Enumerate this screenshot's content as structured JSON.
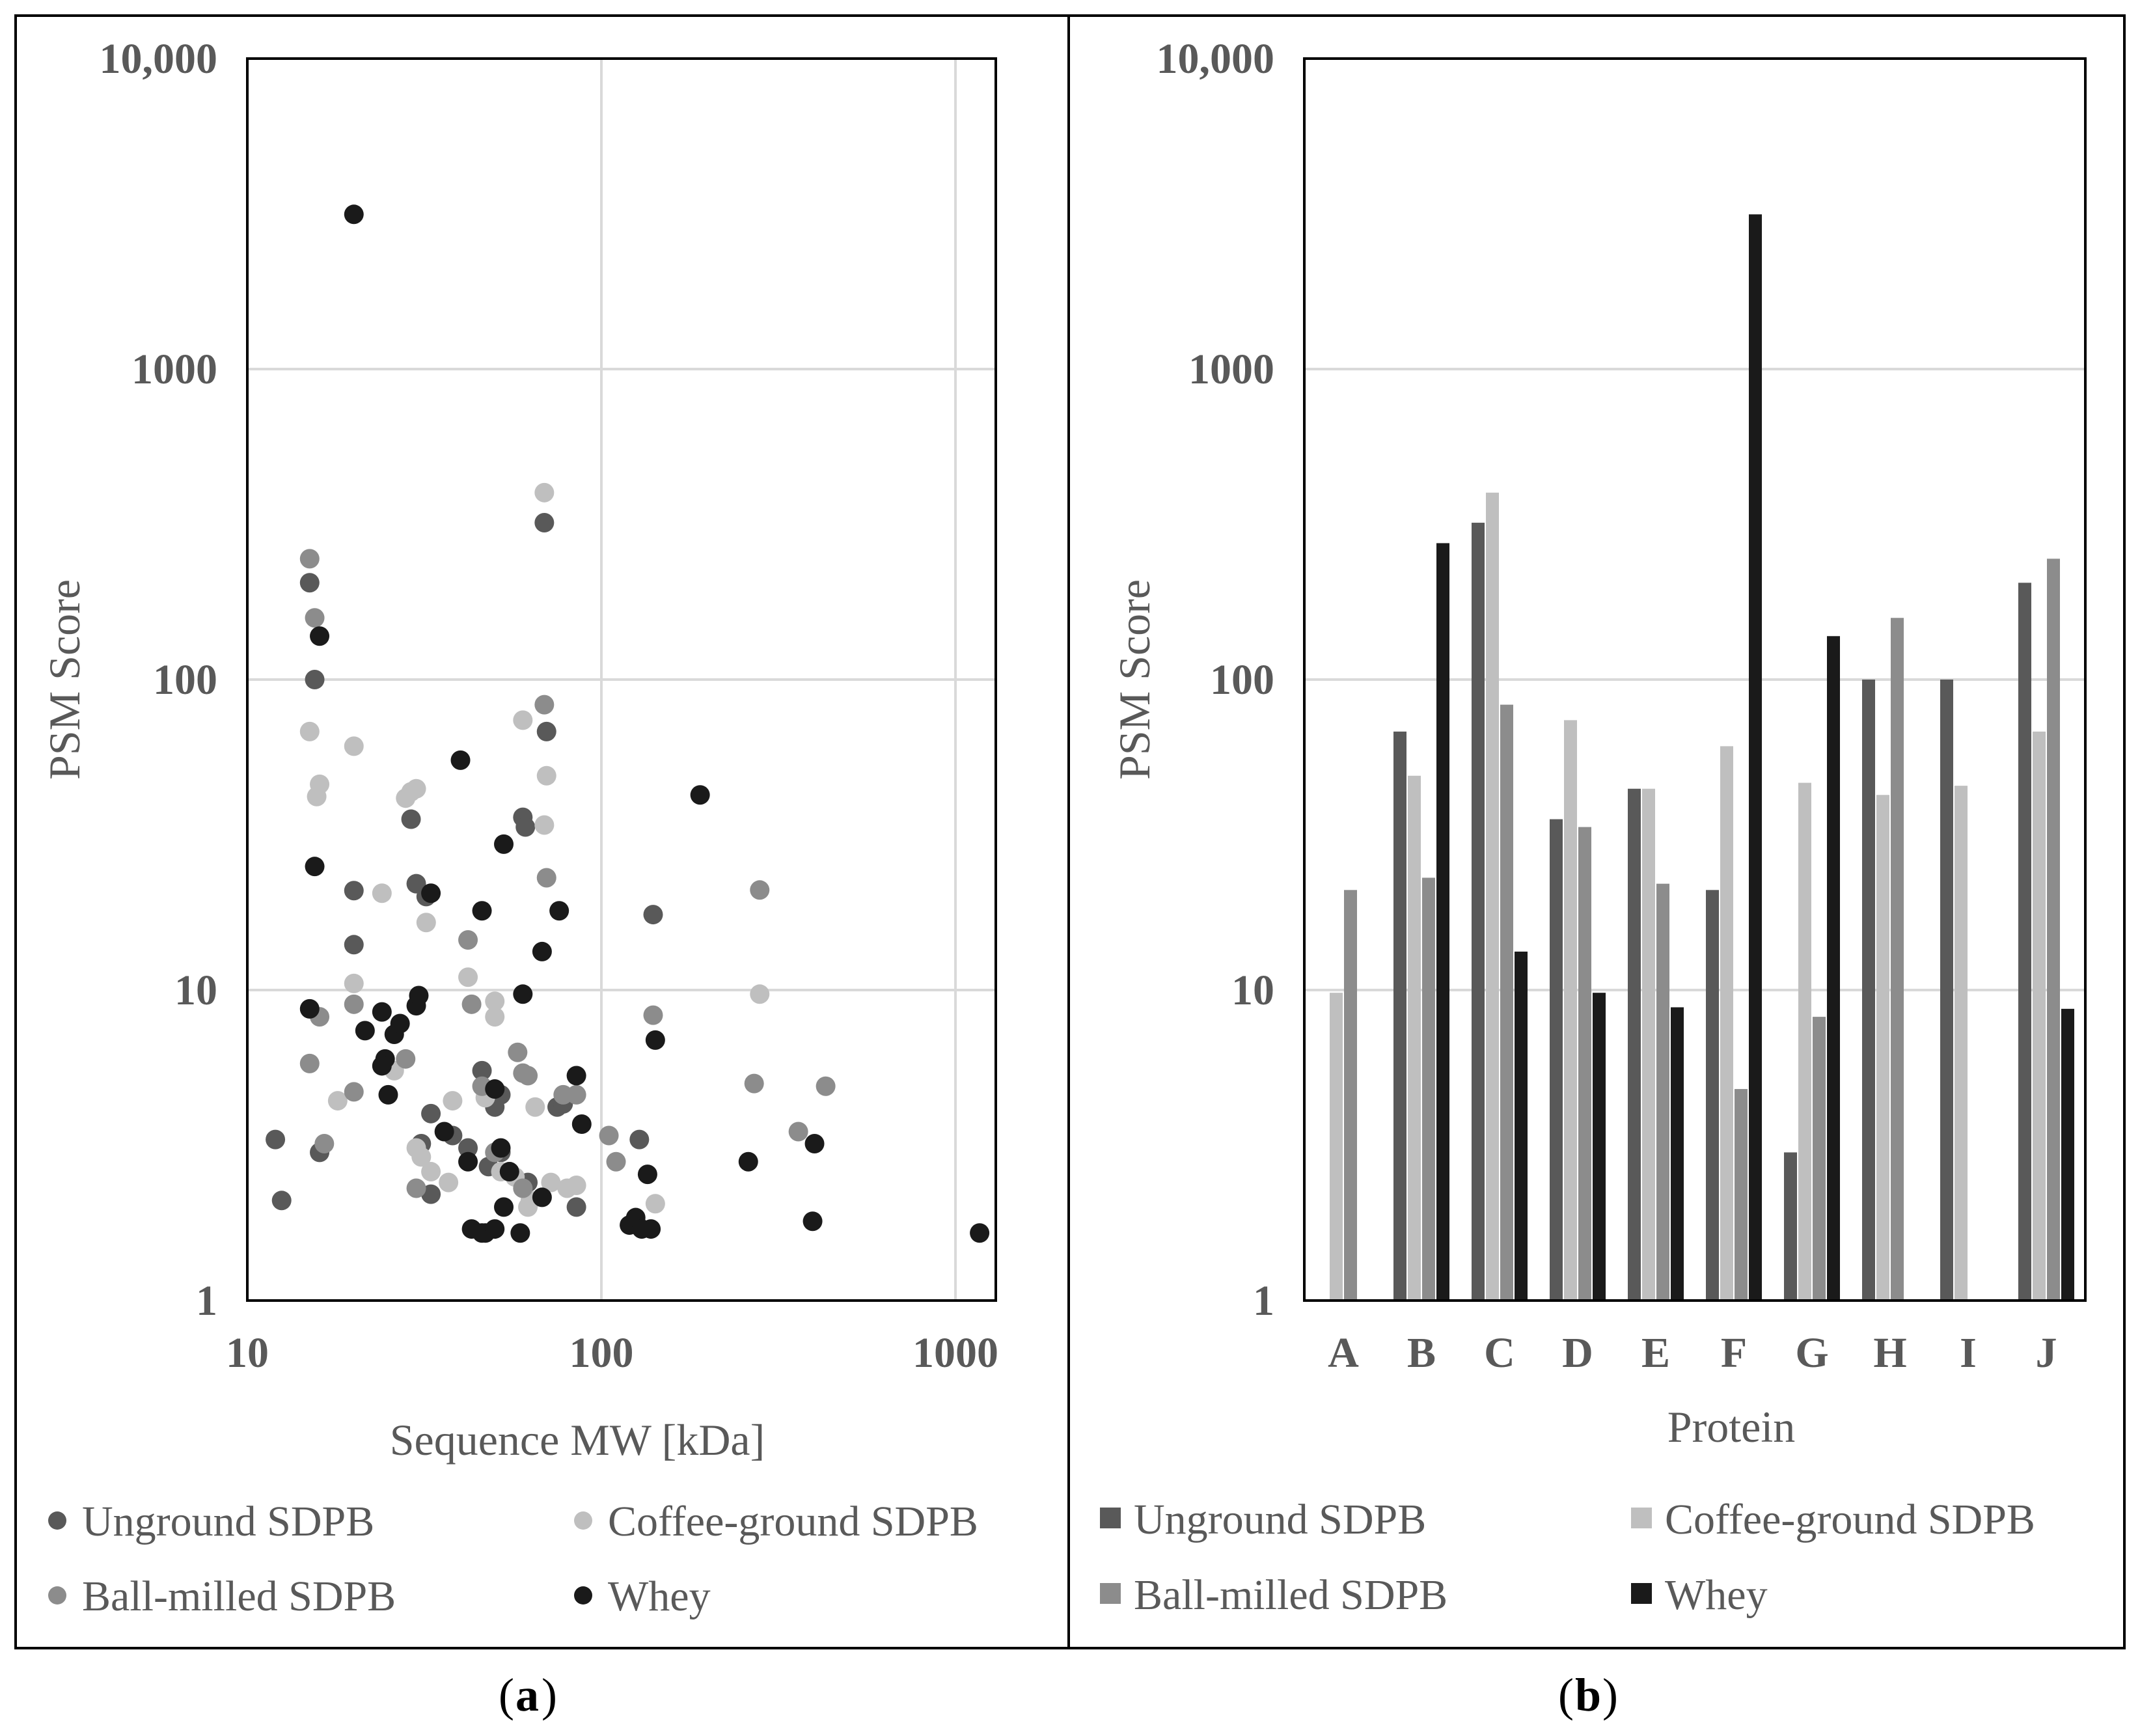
{
  "colors": {
    "unground": "#595959",
    "coffee": "#bfbfbf",
    "ball": "#8c8c8c",
    "whey": "#1a1a1a",
    "grid": "#d9d9d9",
    "axis": "#000000",
    "text": "#595959"
  },
  "legend": {
    "unground": "Unground SDPB",
    "coffee": "Coffee-ground SDPB",
    "ball": "Ball-milled SDPB",
    "whey": "Whey"
  },
  "panel_labels": {
    "a": "a",
    "b": "b"
  },
  "chart_data": [
    {
      "type": "scatter",
      "xlabel": "Sequence MW [kDa]",
      "ylabel": "PSM Score",
      "xscale": "log",
      "yscale": "log",
      "xlim": [
        10,
        1300
      ],
      "ylim": [
        1,
        10000
      ],
      "xticks": [
        10,
        100,
        1000
      ],
      "xtick_labels": [
        "10",
        "100",
        "1000"
      ],
      "yticks": [
        1,
        10,
        100,
        1000,
        10000
      ],
      "ytick_labels": [
        "1",
        "10",
        "100",
        "1000",
        "10,000"
      ],
      "grid": true,
      "legend_position": "bottom",
      "series": [
        {
          "key": "unground",
          "name": "Unground SDPB",
          "points": [
            [
              15,
              205
            ],
            [
              15.5,
              100
            ],
            [
              20,
              20.9
            ],
            [
              20,
              14
            ],
            [
              29,
              35.5
            ],
            [
              30,
              22
            ],
            [
              32,
              20
            ],
            [
              33,
              4
            ],
            [
              12,
              3.3
            ],
            [
              12.5,
              2.1
            ],
            [
              16,
              3
            ],
            [
              31,
              3.2
            ],
            [
              33,
              2.2
            ],
            [
              38,
              3.4
            ],
            [
              42,
              3.1
            ],
            [
              46,
              5.5
            ],
            [
              50,
              4.5
            ],
            [
              50,
              4.2
            ],
            [
              52,
              4.6
            ],
            [
              55,
              2.6
            ],
            [
              60,
              36
            ],
            [
              61,
              33.5
            ],
            [
              69,
              320
            ],
            [
              70,
              68
            ],
            [
              75,
              4.2
            ],
            [
              78,
              4.3
            ],
            [
              85,
              2
            ],
            [
              128,
              3.3
            ],
            [
              140,
              17.5
            ],
            [
              48,
              2.7
            ],
            [
              62,
              2.4
            ],
            [
              52,
              3
            ]
          ]
        },
        {
          "key": "coffee",
          "name": "Coffee-ground SDPB",
          "points": [
            [
              15,
              68
            ],
            [
              16,
              46
            ],
            [
              15.7,
              42
            ],
            [
              20,
              61
            ],
            [
              18,
              4.4
            ],
            [
              20,
              10.5
            ],
            [
              24,
              20.5
            ],
            [
              28,
              41.5
            ],
            [
              29,
              43.5
            ],
            [
              30,
              44.5
            ],
            [
              32,
              16.5
            ],
            [
              26,
              5.5
            ],
            [
              30,
              3.1
            ],
            [
              31,
              2.9
            ],
            [
              33,
              2.6
            ],
            [
              37,
              2.4
            ],
            [
              38,
              4.4
            ],
            [
              42,
              11
            ],
            [
              47,
              4.5
            ],
            [
              50,
              9.2
            ],
            [
              50,
              8.2
            ],
            [
              52,
              2.6
            ],
            [
              57,
              2.5
            ],
            [
              60,
              74
            ],
            [
              62,
              2.0
            ],
            [
              63,
              2.1
            ],
            [
              65,
              4.2
            ],
            [
              69,
              400
            ],
            [
              70,
              49
            ],
            [
              69,
              34
            ],
            [
              72,
              2.4
            ],
            [
              80,
              2.3
            ],
            [
              85,
              2.35
            ],
            [
              142,
              2.05
            ],
            [
              280,
              9.7
            ]
          ]
        },
        {
          "key": "ball",
          "name": "Ball-milled SDPB",
          "points": [
            [
              15,
              245
            ],
            [
              15.5,
              158
            ],
            [
              15,
              5.8
            ],
            [
              16,
              8.2
            ],
            [
              16.5,
              3.2
            ],
            [
              20,
              9
            ],
            [
              20,
              4.7
            ],
            [
              28,
              6
            ],
            [
              30,
              2.3
            ],
            [
              42,
              14.5
            ],
            [
              43,
              9
            ],
            [
              46,
              4.9
            ],
            [
              50,
              3
            ],
            [
              55,
              2.6
            ],
            [
              58,
              6.3
            ],
            [
              60,
              5.4
            ],
            [
              62,
              5.3
            ],
            [
              60,
              2.3
            ],
            [
              69,
              83
            ],
            [
              70,
              23
            ],
            [
              78,
              4.6
            ],
            [
              85,
              4.6
            ],
            [
              105,
              3.4
            ],
            [
              110,
              2.8
            ],
            [
              140,
              8.3
            ],
            [
              270,
              5
            ],
            [
              280,
              21
            ],
            [
              360,
              3.5
            ],
            [
              430,
              4.9
            ]
          ]
        },
        {
          "key": "whey",
          "name": "Whey",
          "points": [
            [
              20,
              3150
            ],
            [
              16,
              138
            ],
            [
              15.5,
              25
            ],
            [
              15,
              8.7
            ],
            [
              21.5,
              7.4
            ],
            [
              24,
              8.5
            ],
            [
              24.5,
              6
            ],
            [
              24,
              5.7
            ],
            [
              25,
              4.6
            ],
            [
              26,
              7.2
            ],
            [
              27,
              7.8
            ],
            [
              30,
              8.9
            ],
            [
              30.5,
              9.6
            ],
            [
              33,
              20.5
            ],
            [
              36,
              3.5
            ],
            [
              40,
              55
            ],
            [
              42,
              2.8
            ],
            [
              43,
              1.7
            ],
            [
              46,
              18
            ],
            [
              46,
              1.65
            ],
            [
              47,
              1.65
            ],
            [
              50,
              4.8
            ],
            [
              50,
              1.7
            ],
            [
              52,
              3.1
            ],
            [
              53,
              29.5
            ],
            [
              53,
              2.0
            ],
            [
              55,
              2.6
            ],
            [
              59,
              1.65
            ],
            [
              60,
              9.7
            ],
            [
              68,
              13.3
            ],
            [
              68,
              2.15
            ],
            [
              76,
              18
            ],
            [
              85,
              5.3
            ],
            [
              88,
              3.7
            ],
            [
              120,
              1.75
            ],
            [
              125,
              1.85
            ],
            [
              130,
              1.7
            ],
            [
              135,
              2.55
            ],
            [
              138,
              1.7
            ],
            [
              142,
              6.9
            ],
            [
              190,
              42.5
            ],
            [
              260,
              2.8
            ],
            [
              400,
              3.2
            ],
            [
              395,
              1.8
            ],
            [
              1170,
              1.65
            ]
          ]
        }
      ]
    },
    {
      "type": "bar",
      "xlabel": "Protein",
      "ylabel": "PSM Score",
      "yscale": "log",
      "ylim": [
        1,
        10000
      ],
      "yticks": [
        1,
        10,
        100,
        1000,
        10000
      ],
      "ytick_labels": [
        "1",
        "10",
        "100",
        "1000",
        "10,000"
      ],
      "grid": true,
      "legend_position": "bottom",
      "categories": [
        "A",
        "B",
        "C",
        "D",
        "E",
        "F",
        "G",
        "H",
        "I",
        "J"
      ],
      "series": [
        {
          "key": "unground",
          "name": "Unground SDPB",
          "values": [
            null,
            68,
            320,
            35.5,
            44.5,
            21,
            3.0,
            100,
            100,
            205
          ]
        },
        {
          "key": "coffee",
          "name": "Coffee-ground SDPB",
          "values": [
            9.8,
            49,
            400,
            74,
            44.5,
            61,
            46.5,
            42.5,
            45.5,
            68
          ]
        },
        {
          "key": "ball",
          "name": "Ball-milled SDPB",
          "values": [
            21,
            23,
            83,
            33.5,
            22,
            4.8,
            8.2,
            158,
            null,
            245
          ]
        },
        {
          "key": "whey",
          "name": "Whey",
          "values": [
            null,
            275,
            13.3,
            9.8,
            8.8,
            3150,
            138,
            null,
            null,
            8.7
          ]
        }
      ]
    }
  ]
}
